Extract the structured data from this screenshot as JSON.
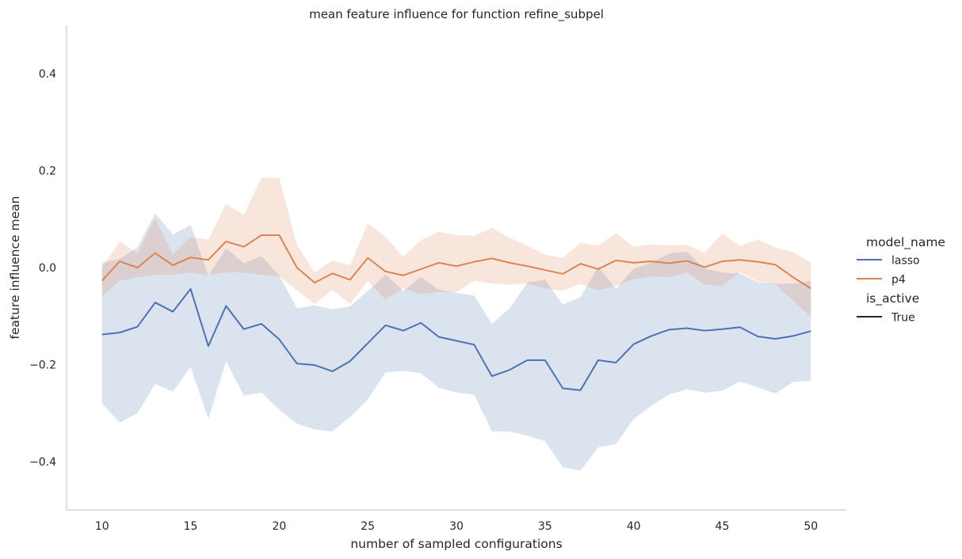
{
  "chart_data": {
    "type": "line",
    "title": "mean feature influence for function refine_subpel",
    "xlabel": "number of sampled configurations",
    "ylabel": "feature influence mean",
    "xlim": [
      8,
      52
    ],
    "ylim": [
      -0.5,
      0.5
    ],
    "xticks": [
      10,
      15,
      20,
      25,
      30,
      35,
      40,
      45,
      50
    ],
    "xtick_labels": [
      "10",
      "15",
      "20",
      "25",
      "30",
      "35",
      "40",
      "45",
      "50"
    ],
    "yticks": [
      -0.4,
      -0.2,
      0.0,
      0.2,
      0.4
    ],
    "ytick_labels": [
      "−0.4",
      "−0.2",
      "0.0",
      "0.2",
      "0.4"
    ],
    "grid": false,
    "legend_position": "right",
    "legend": {
      "title1": "model_name",
      "title2": "is_active",
      "style_entry": "True"
    },
    "x": [
      10,
      11,
      12,
      13,
      14,
      15,
      16,
      17,
      18,
      19,
      20,
      21,
      22,
      23,
      24,
      25,
      26,
      27,
      28,
      29,
      30,
      31,
      32,
      33,
      34,
      35,
      36,
      37,
      38,
      39,
      40,
      41,
      42,
      43,
      44,
      45,
      46,
      47,
      48,
      49,
      50
    ],
    "series": [
      {
        "name": "lasso",
        "color": "#4c72b0",
        "values": [
          -0.138,
          -0.134,
          -0.122,
          -0.072,
          -0.091,
          -0.044,
          -0.162,
          -0.079,
          -0.127,
          -0.116,
          -0.148,
          -0.198,
          -0.201,
          -0.214,
          -0.193,
          -0.156,
          -0.119,
          -0.13,
          -0.114,
          -0.143,
          -0.151,
          -0.159,
          -0.224,
          -0.211,
          -0.191,
          -0.191,
          -0.249,
          -0.253,
          -0.191,
          -0.196,
          -0.158,
          -0.141,
          -0.128,
          -0.125,
          -0.13,
          -0.127,
          -0.123,
          -0.142,
          -0.147,
          -0.141,
          -0.131
        ],
        "lower": [
          -0.28,
          -0.32,
          -0.3,
          -0.24,
          -0.256,
          -0.205,
          -0.312,
          -0.193,
          -0.264,
          -0.258,
          -0.293,
          -0.322,
          -0.334,
          -0.338,
          -0.308,
          -0.272,
          -0.216,
          -0.213,
          -0.218,
          -0.248,
          -0.258,
          -0.262,
          -0.338,
          -0.338,
          -0.347,
          -0.358,
          -0.412,
          -0.419,
          -0.371,
          -0.364,
          -0.313,
          -0.285,
          -0.262,
          -0.251,
          -0.258,
          -0.254,
          -0.235,
          -0.247,
          -0.26,
          -0.236,
          -0.233
        ],
        "upper": [
          0.01,
          0.018,
          0.042,
          0.112,
          0.068,
          0.088,
          -0.017,
          0.04,
          0.009,
          0.024,
          -0.017,
          -0.084,
          -0.078,
          -0.086,
          -0.08,
          -0.048,
          -0.014,
          -0.048,
          -0.019,
          -0.046,
          -0.052,
          -0.058,
          -0.116,
          -0.084,
          -0.031,
          -0.025,
          -0.076,
          -0.061,
          0.002,
          -0.044,
          -0.002,
          0.01,
          0.029,
          0.033,
          -0.002,
          -0.01,
          -0.012,
          -0.03,
          -0.033,
          -0.033,
          -0.027
        ]
      },
      {
        "name": "p4",
        "color": "#dd8452",
        "values": [
          -0.027,
          0.013,
          0.0,
          0.03,
          0.005,
          0.021,
          0.016,
          0.054,
          0.043,
          0.067,
          0.067,
          0.0,
          -0.031,
          -0.012,
          -0.025,
          0.02,
          -0.008,
          -0.016,
          -0.003,
          0.01,
          0.003,
          0.012,
          0.019,
          0.01,
          0.003,
          -0.005,
          -0.013,
          0.008,
          -0.003,
          0.015,
          0.01,
          0.013,
          0.009,
          0.014,
          0.001,
          0.013,
          0.016,
          0.012,
          0.006,
          -0.02,
          -0.043
        ],
        "lower": [
          -0.06,
          -0.027,
          -0.02,
          -0.015,
          -0.015,
          -0.01,
          -0.015,
          -0.01,
          -0.01,
          -0.015,
          -0.018,
          -0.047,
          -0.075,
          -0.046,
          -0.075,
          -0.028,
          -0.066,
          -0.042,
          -0.055,
          -0.05,
          -0.051,
          -0.027,
          -0.033,
          -0.035,
          -0.033,
          -0.043,
          -0.048,
          -0.034,
          -0.047,
          -0.038,
          -0.024,
          -0.018,
          -0.02,
          -0.01,
          -0.035,
          -0.038,
          -0.01,
          -0.028,
          -0.035,
          -0.068,
          -0.102
        ],
        "upper": [
          0.0,
          0.054,
          0.03,
          0.102,
          0.027,
          0.063,
          0.058,
          0.131,
          0.109,
          0.186,
          0.185,
          0.047,
          -0.01,
          0.015,
          0.005,
          0.092,
          0.064,
          0.022,
          0.057,
          0.074,
          0.067,
          0.066,
          0.082,
          0.062,
          0.045,
          0.027,
          0.02,
          0.051,
          0.046,
          0.071,
          0.043,
          0.048,
          0.046,
          0.047,
          0.031,
          0.07,
          0.045,
          0.058,
          0.041,
          0.032,
          0.011
        ]
      }
    ]
  }
}
